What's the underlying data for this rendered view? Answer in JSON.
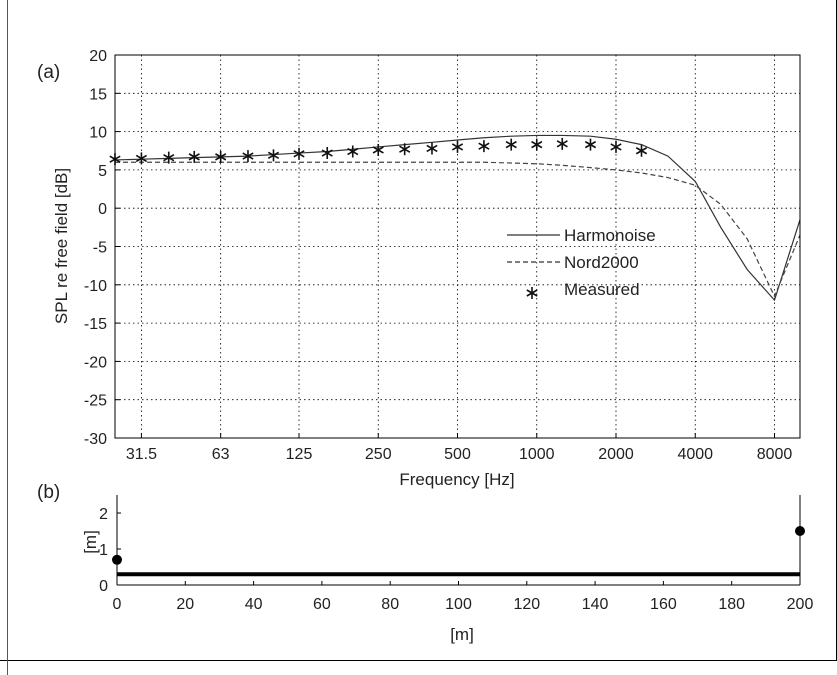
{
  "panel_labels": {
    "a": "(a)",
    "b": "(b)"
  },
  "chart_data": [
    {
      "type": "line",
      "panel": "(a)",
      "xlabel": "Frequency [Hz]",
      "ylabel": "SPL re free field [dB]",
      "x_scale": "log",
      "xlim": [
        25,
        10000
      ],
      "ylim": [
        -30,
        20
      ],
      "x_ticks": [
        31.5,
        63,
        125,
        250,
        500,
        1000,
        2000,
        4000,
        8000
      ],
      "x_tick_labels": [
        "31.5",
        "63",
        "125",
        "250",
        "500",
        "1000",
        "2000",
        "4000",
        "8000"
      ],
      "y_ticks": [
        -30,
        -25,
        -20,
        -15,
        -10,
        -5,
        0,
        5,
        10,
        15,
        20
      ],
      "y_tick_labels": [
        "-30",
        "-25",
        "-20",
        "-15",
        "-10",
        "-5",
        "0",
        "5",
        "10",
        "15",
        "20"
      ],
      "grid": true,
      "legend_position": "center-right",
      "series": [
        {
          "name": "Harmonoise",
          "style": "solid",
          "x": [
            25,
            31.5,
            40,
            50,
            63,
            80,
            100,
            125,
            160,
            200,
            250,
            315,
            400,
            500,
            630,
            800,
            1000,
            1250,
            1600,
            2000,
            2500,
            3150,
            4000,
            5000,
            6300,
            8000,
            10000
          ],
          "y": [
            6.3,
            6.4,
            6.5,
            6.6,
            6.7,
            6.8,
            7.0,
            7.2,
            7.4,
            7.7,
            8.0,
            8.3,
            8.6,
            8.9,
            9.2,
            9.4,
            9.5,
            9.5,
            9.4,
            9.0,
            8.3,
            6.8,
            3.5,
            -2.5,
            -8.0,
            -12.0,
            -1.5
          ]
        },
        {
          "name": "Nord2000",
          "style": "dashed",
          "x": [
            25,
            31.5,
            40,
            50,
            63,
            80,
            100,
            125,
            160,
            200,
            250,
            315,
            400,
            500,
            630,
            800,
            1000,
            1250,
            1600,
            2000,
            2500,
            3150,
            4000,
            5000,
            6300,
            8000,
            10000
          ],
          "y": [
            6.0,
            6.0,
            6.0,
            6.0,
            6.0,
            6.0,
            6.0,
            6.0,
            6.0,
            6.0,
            6.0,
            6.0,
            6.0,
            6.0,
            6.0,
            5.9,
            5.8,
            5.6,
            5.3,
            5.0,
            4.6,
            4.0,
            3.0,
            0.5,
            -4.0,
            -11.5,
            -3.5
          ]
        },
        {
          "name": "Measured",
          "style": "marker-asterisk",
          "x": [
            25,
            31.5,
            40,
            50,
            63,
            80,
            100,
            125,
            160,
            200,
            250,
            315,
            400,
            500,
            630,
            800,
            1000,
            1250,
            1600,
            2000,
            2500
          ],
          "y": [
            6.4,
            6.5,
            6.6,
            6.7,
            6.7,
            6.8,
            6.9,
            7.1,
            7.2,
            7.4,
            7.6,
            7.7,
            7.8,
            8.0,
            8.1,
            8.3,
            8.3,
            8.4,
            8.3,
            8.0,
            7.5
          ]
        }
      ]
    },
    {
      "type": "line",
      "panel": "(b)",
      "xlabel": "[m]",
      "ylabel": "[m]",
      "xlim": [
        0,
        200
      ],
      "ylim": [
        0,
        2.5
      ],
      "x_ticks": [
        0,
        20,
        40,
        60,
        80,
        100,
        120,
        140,
        160,
        180,
        200
      ],
      "x_tick_labels": [
        "0",
        "20",
        "40",
        "60",
        "80",
        "100",
        "120",
        "140",
        "160",
        "180",
        "200"
      ],
      "y_ticks": [
        0,
        1,
        2
      ],
      "y_tick_labels": [
        "0",
        "1",
        "2"
      ],
      "grid": false,
      "ground_level": 0.3,
      "source": {
        "x": 0,
        "y": 0.7
      },
      "receiver": {
        "x": 200,
        "y": 1.5
      }
    }
  ]
}
